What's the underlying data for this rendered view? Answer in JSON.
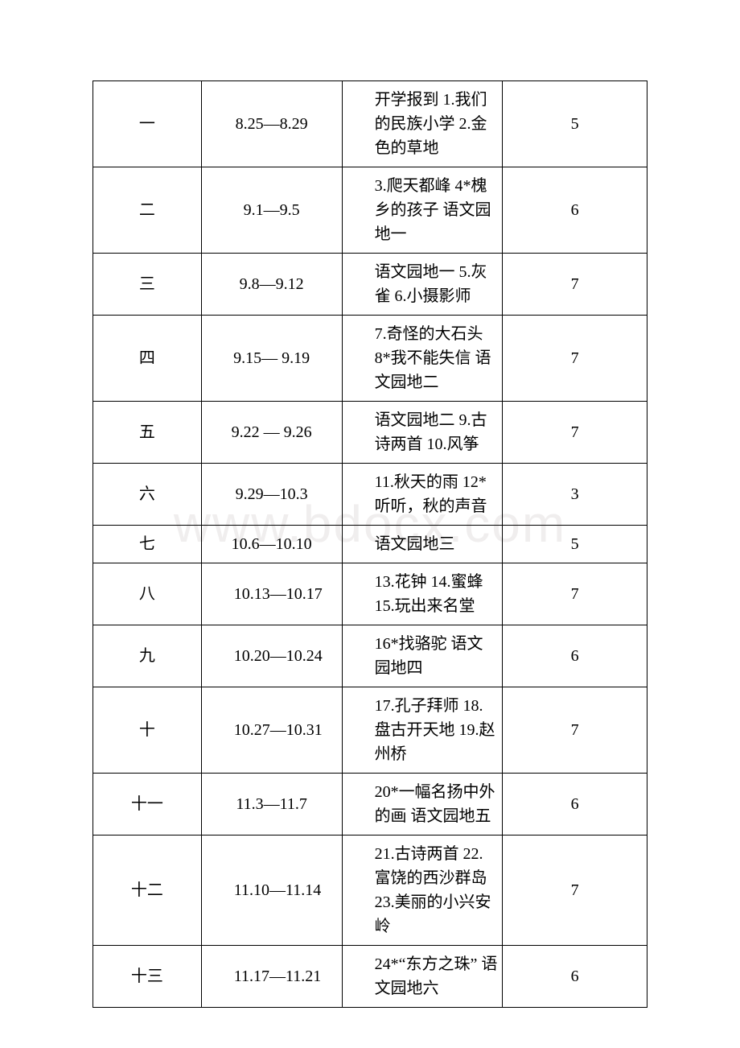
{
  "watermark": "www.bdocx.com",
  "table": {
    "columns": [
      "week",
      "date",
      "content",
      "count"
    ],
    "colWidths": [
      "135px",
      "175px",
      "200px",
      "180px"
    ],
    "rows": [
      {
        "week": "一",
        "date": "8.25—8.29",
        "dateCenter": true,
        "content": "开学报到 1.我们的民族小学 2.金色的草地",
        "count": "5"
      },
      {
        "week": "二",
        "date": "9.1—9.5",
        "dateCenter": true,
        "content": "3.爬天都峰 4*槐乡的孩子 语文园地一",
        "count": "6"
      },
      {
        "week": "三",
        "date": "9.8—9.12",
        "dateCenter": true,
        "content": "语文园地一 5.灰雀 6.小摄影师",
        "count": "7"
      },
      {
        "week": "四",
        "date": "9.15— 9.19",
        "dateCenter": true,
        "content": "7.奇怪的大石头 8*我不能失信 语文园地二",
        "count": "7"
      },
      {
        "week": "五",
        "date": "9.22 — 9.26",
        "dateCenter": true,
        "content": "语文园地二 9.古诗两首 10.风筝",
        "count": "7"
      },
      {
        "week": "六",
        "date": "9.29—10.3",
        "dateCenter": true,
        "content": "11.秋天的雨 12*听听，秋的声音",
        "count": "3"
      },
      {
        "week": "七",
        "date": "10.6—10.10",
        "dateCenter": true,
        "content": "语文园地三",
        "count": "5"
      },
      {
        "week": "八",
        "date": "10.13—10.17",
        "dateCenter": false,
        "content": "13.花钟 14.蜜蜂 15.玩出来名堂",
        "count": "7"
      },
      {
        "week": "九",
        "date": "10.20—10.24",
        "dateCenter": false,
        "content": "16*找骆驼 语文园地四",
        "count": "6"
      },
      {
        "week": "十",
        "date": "10.27—10.31",
        "dateCenter": false,
        "content": "17.孔子拜师 18.盘古开天地 19.赵州桥",
        "count": "7"
      },
      {
        "week": "十一",
        "date": "11.3—11.7",
        "dateCenter": true,
        "content": "20*一幅名扬中外的画 语文园地五",
        "count": "6"
      },
      {
        "week": "十二",
        "date": "11.10—11.14",
        "dateCenter": false,
        "content": "21.古诗两首 22.富饶的西沙群岛 23.美丽的小兴安岭",
        "count": "7"
      },
      {
        "week": "十三",
        "date": "11.17—11.21",
        "dateCenter": false,
        "content": "24*“东方之珠” 语文园地六",
        "count": "6"
      }
    ]
  },
  "style": {
    "fontSize": 20,
    "borderColor": "#000000",
    "backgroundColor": "#ffffff",
    "watermarkColor": "#f0eeee"
  }
}
